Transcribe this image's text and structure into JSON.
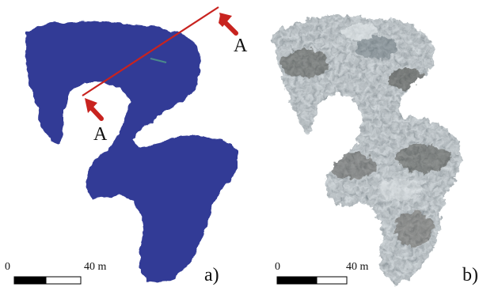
{
  "panels": [
    {
      "label": "a)",
      "section_marker_labels": [
        "A",
        "A"
      ],
      "scale_bar": {
        "start_label": "0",
        "end_label": "40 m"
      },
      "colors": {
        "map_fill": "#303a96",
        "section_line": "#c8231f",
        "arrow": "#c8231f"
      }
    },
    {
      "label": "b)",
      "scale_bar": {
        "start_label": "0",
        "end_label": "40 m"
      },
      "colors": {
        "texture_light": "#c9d2d6",
        "texture_dark": "#3a3a34",
        "texture_mid": "#8a8f8b"
      }
    }
  ]
}
